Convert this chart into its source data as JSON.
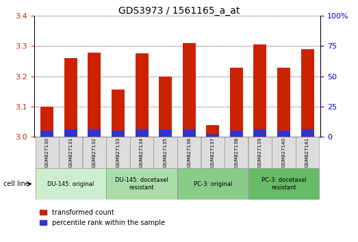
{
  "title": "GDS3973 / 1561165_a_at",
  "samples": [
    "GSM827130",
    "GSM827131",
    "GSM827132",
    "GSM827133",
    "GSM827134",
    "GSM827135",
    "GSM827136",
    "GSM827137",
    "GSM827138",
    "GSM827139",
    "GSM827140",
    "GSM827141"
  ],
  "red_values": [
    3.1,
    3.26,
    3.278,
    3.155,
    3.275,
    3.198,
    3.31,
    3.038,
    3.228,
    3.305,
    3.228,
    3.29
  ],
  "blue_values": [
    0.02,
    0.025,
    0.025,
    0.02,
    0.025,
    0.025,
    0.025,
    0.01,
    0.02,
    0.025,
    0.02,
    0.025
  ],
  "ylim_left": [
    3.0,
    3.4
  ],
  "ylim_right": [
    0,
    100
  ],
  "yticks_left": [
    3.0,
    3.1,
    3.2,
    3.3,
    3.4
  ],
  "yticks_right": [
    0,
    25,
    50,
    75,
    100
  ],
  "ytick_labels_right": [
    "0",
    "25",
    "50",
    "75",
    "100%"
  ],
  "bar_color_red": "#cc2200",
  "bar_color_blue": "#3333cc",
  "group_data": [
    {
      "start": 0,
      "end": 2,
      "label": "DU-145: original",
      "color": "#cceecc"
    },
    {
      "start": 3,
      "end": 5,
      "label": "DU-145: docetaxel\nresistant",
      "color": "#aaddaa"
    },
    {
      "start": 6,
      "end": 8,
      "label": "PC-3: original",
      "color": "#88cc88"
    },
    {
      "start": 9,
      "end": 11,
      "label": "PC-3: docetaxel\nresistant",
      "color": "#66bb66"
    }
  ],
  "cell_line_label": "cell line",
  "legend_red": "transformed count",
  "legend_blue": "percentile rank within the sample",
  "bar_width": 0.55,
  "tick_color_left": "#cc2200",
  "tick_color_right": "#0000cc"
}
